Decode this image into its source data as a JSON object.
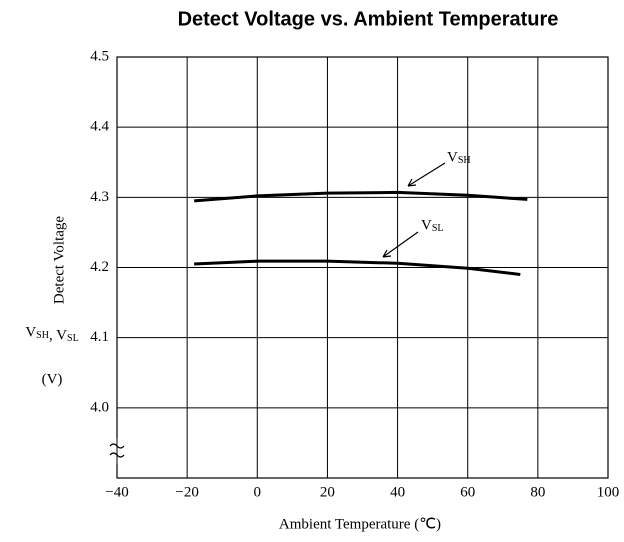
{
  "chart_data": {
    "type": "line",
    "title": "Detect Voltage vs. Ambient Temperature",
    "x_label": "Ambient Temperature (℃)",
    "y_label": "Detect Voltage",
    "y_label2": "VSH, VSL",
    "y_unit": "(V)",
    "series": [
      {
        "name": "VSH",
        "color": "#000000",
        "x": [
          -18,
          0,
          20,
          40,
          60,
          77
        ],
        "values": [
          4.295,
          4.302,
          4.306,
          4.307,
          4.303,
          4.297
        ]
      },
      {
        "name": "VSL",
        "color": "#000000",
        "x": [
          -18,
          0,
          20,
          40,
          60,
          75
        ],
        "values": [
          4.205,
          4.209,
          4.209,
          4.206,
          4.199,
          4.19
        ]
      }
    ],
    "xlim": [
      -40,
      100
    ],
    "xticks": [
      {
        "value": -40,
        "label": "−40"
      },
      {
        "value": -20,
        "label": "−20"
      },
      0,
      20,
      40,
      60,
      80,
      100
    ],
    "ylim": [
      3.9,
      4.5
    ],
    "yticks": [
      {
        "value": 4.0,
        "label": "4.0"
      },
      4.1,
      4.2,
      4.3,
      4.4,
      4.5
    ],
    "grid": true
  }
}
